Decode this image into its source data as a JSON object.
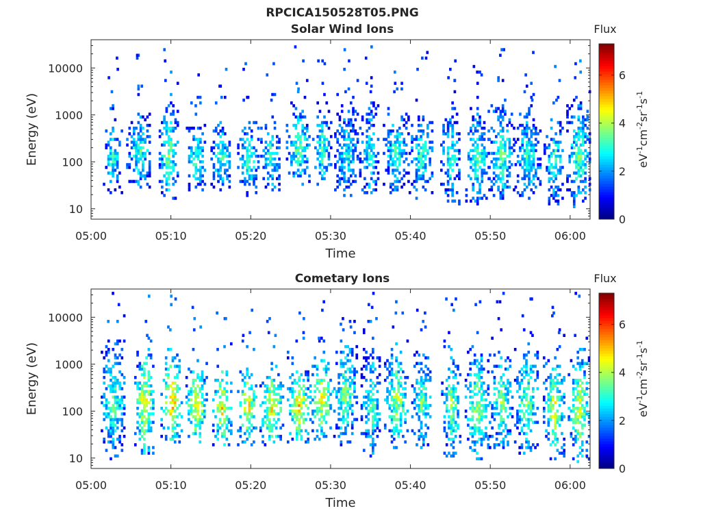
{
  "figure": {
    "filename": "RPCICA150528T05.PNG"
  },
  "chart_data": [
    {
      "type": "heatmap",
      "title": "Solar Wind Ions",
      "xlabel": "Time",
      "ylabel": "Energy (eV)",
      "x_ticks": [
        "05:00",
        "05:10",
        "05:20",
        "05:30",
        "05:40",
        "05:50",
        "06:00"
      ],
      "x_range_minutes": [
        0,
        62.5
      ],
      "y_scale": "log",
      "y_ticks": [
        10,
        100,
        1000,
        10000
      ],
      "y_tick_labels": [
        "10",
        "100",
        "1000",
        "10000"
      ],
      "y_range": [
        6,
        40000
      ],
      "colorbar": {
        "label": "Flux",
        "unit": "eV-1cm-2sr-1s-1",
        "ticks": [
          0,
          2,
          4,
          6
        ],
        "range": [
          0,
          7.3
        ],
        "colormap": "jet"
      },
      "bursts": [
        {
          "t": 2.6,
          "lo": 35,
          "hi": 800,
          "peak": 3.0
        },
        {
          "t": 5.9,
          "lo": 45,
          "hi": 1200,
          "peak": 3.2
        },
        {
          "t": 9.6,
          "lo": 25,
          "hi": 1500,
          "peak": 3.8
        },
        {
          "t": 13.1,
          "lo": 40,
          "hi": 600,
          "peak": 3.3
        },
        {
          "t": 16.2,
          "lo": 40,
          "hi": 700,
          "peak": 3.3
        },
        {
          "t": 19.6,
          "lo": 30,
          "hi": 700,
          "peak": 3.4
        },
        {
          "t": 22.4,
          "lo": 40,
          "hi": 700,
          "peak": 3.3
        },
        {
          "t": 25.9,
          "lo": 50,
          "hi": 1400,
          "peak": 3.5
        },
        {
          "t": 28.8,
          "lo": 40,
          "hi": 1300,
          "peak": 3.4
        },
        {
          "t": 31.9,
          "lo": 25,
          "hi": 1500,
          "peak": 3.0
        },
        {
          "t": 34.8,
          "lo": 25,
          "hi": 1600,
          "peak": 3.0
        },
        {
          "t": 38.1,
          "lo": 35,
          "hi": 1300,
          "peak": 3.2
        },
        {
          "t": 41.3,
          "lo": 25,
          "hi": 1200,
          "peak": 3.1
        },
        {
          "t": 44.9,
          "lo": 20,
          "hi": 1400,
          "peak": 3.2
        },
        {
          "t": 48.3,
          "lo": 20,
          "hi": 1300,
          "peak": 3.4
        },
        {
          "t": 51.3,
          "lo": 25,
          "hi": 1600,
          "peak": 3.4
        },
        {
          "t": 54.6,
          "lo": 25,
          "hi": 1100,
          "peak": 3.2
        },
        {
          "t": 57.9,
          "lo": 20,
          "hi": 900,
          "peak": 3.3
        },
        {
          "t": 61.0,
          "lo": 18,
          "hi": 1600,
          "peak": 3.6
        }
      ]
    },
    {
      "type": "heatmap",
      "title": "Cometary Ions",
      "xlabel": "Time",
      "ylabel": "Energy (eV)",
      "x_ticks": [
        "05:00",
        "05:10",
        "05:20",
        "05:30",
        "05:40",
        "05:50",
        "06:00"
      ],
      "x_range_minutes": [
        0,
        62.5
      ],
      "y_scale": "log",
      "y_ticks": [
        10,
        100,
        1000,
        10000
      ],
      "y_tick_labels": [
        "10",
        "100",
        "1000",
        "10000"
      ],
      "y_range": [
        6,
        40000
      ],
      "colorbar": {
        "label": "Flux",
        "unit": "eV-1cm-2sr-1s-1",
        "ticks": [
          0,
          2,
          4,
          6
        ],
        "range": [
          0,
          7.3
        ],
        "colormap": "jet"
      },
      "bursts": [
        {
          "t": 2.7,
          "lo": 15,
          "hi": 3000,
          "peak": 3.5
        },
        {
          "t": 6.6,
          "lo": 20,
          "hi": 2000,
          "peak": 4.8
        },
        {
          "t": 10.0,
          "lo": 30,
          "hi": 1500,
          "peak": 5.4
        },
        {
          "t": 13.1,
          "lo": 35,
          "hi": 900,
          "peak": 5.0
        },
        {
          "t": 16.3,
          "lo": 30,
          "hi": 900,
          "peak": 5.0
        },
        {
          "t": 19.5,
          "lo": 30,
          "hi": 900,
          "peak": 4.9
        },
        {
          "t": 22.6,
          "lo": 30,
          "hi": 900,
          "peak": 4.9
        },
        {
          "t": 25.9,
          "lo": 30,
          "hi": 1000,
          "peak": 5.0
        },
        {
          "t": 28.8,
          "lo": 40,
          "hi": 1500,
          "peak": 4.7
        },
        {
          "t": 31.8,
          "lo": 30,
          "hi": 3000,
          "peak": 3.8
        },
        {
          "t": 35.0,
          "lo": 18,
          "hi": 2000,
          "peak": 3.5
        },
        {
          "t": 38.2,
          "lo": 25,
          "hi": 2000,
          "peak": 4.2
        },
        {
          "t": 41.3,
          "lo": 25,
          "hi": 2000,
          "peak": 3.6
        },
        {
          "t": 45.0,
          "lo": 15,
          "hi": 2000,
          "peak": 3.9
        },
        {
          "t": 48.3,
          "lo": 15,
          "hi": 2000,
          "peak": 4.2
        },
        {
          "t": 51.3,
          "lo": 25,
          "hi": 2000,
          "peak": 3.8
        },
        {
          "t": 54.5,
          "lo": 20,
          "hi": 2000,
          "peak": 3.8
        },
        {
          "t": 57.9,
          "lo": 15,
          "hi": 1500,
          "peak": 4.4
        },
        {
          "t": 61.0,
          "lo": 12,
          "hi": 2000,
          "peak": 4.4
        }
      ]
    }
  ]
}
